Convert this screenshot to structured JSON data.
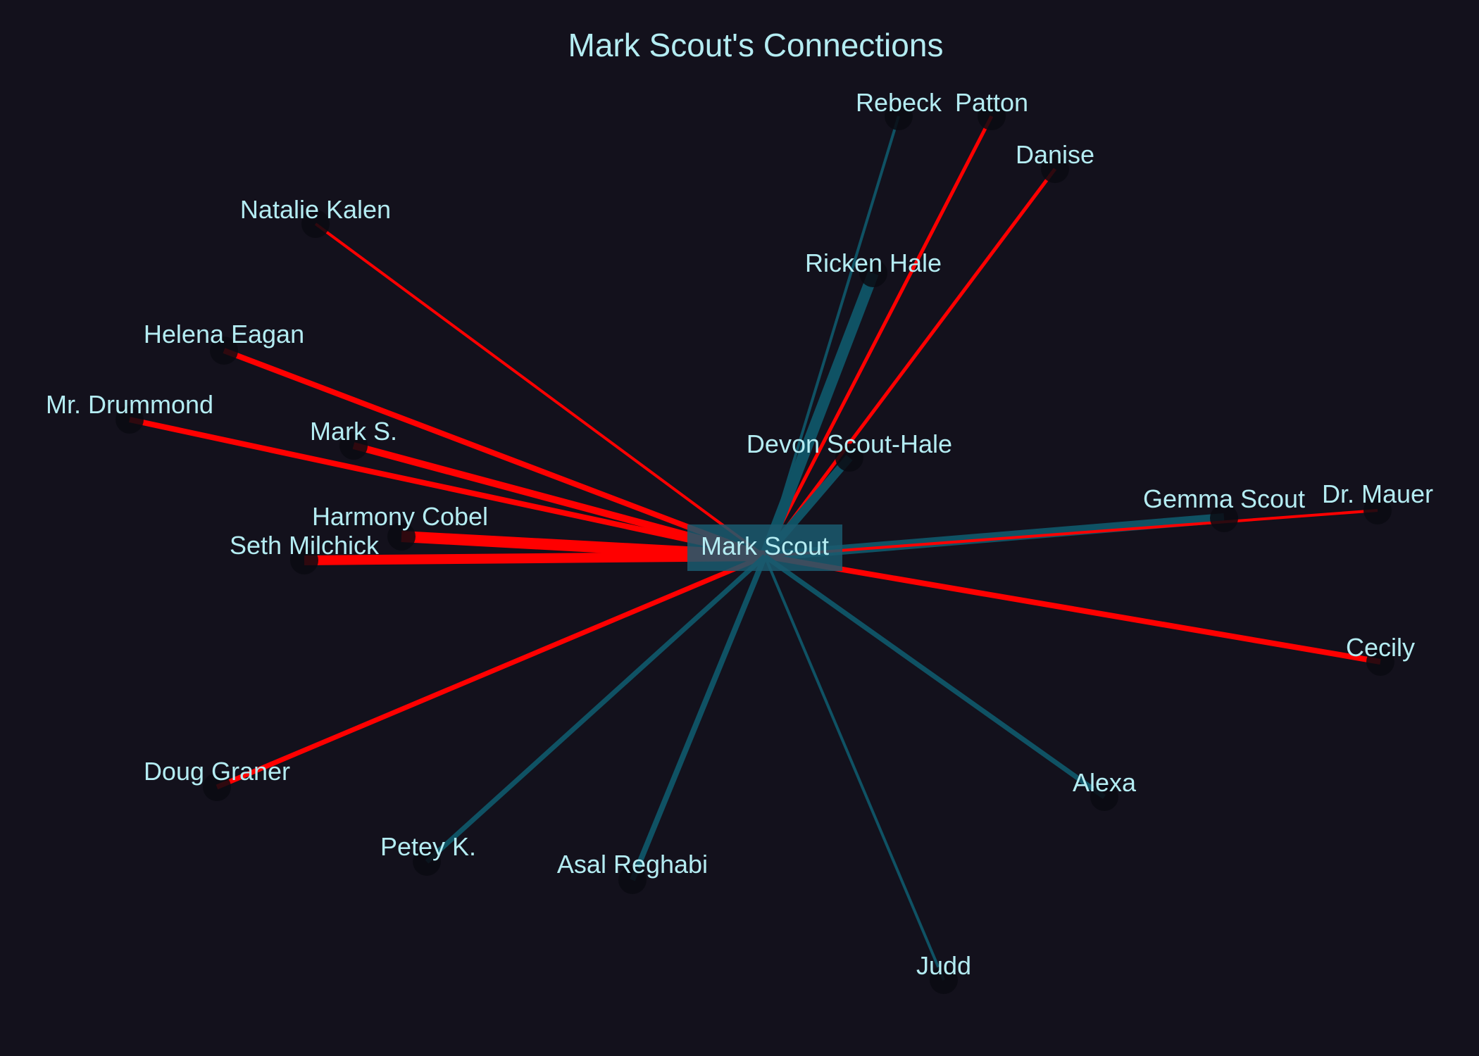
{
  "title": "Mark Scout's Connections",
  "colors": {
    "background": "#13111c",
    "text": "#b4ecf2",
    "positive_edge": "#0f5264",
    "negative_edge": "#ff0000",
    "node_fill": "#0b0a12",
    "center_box": "#1b5a6e"
  },
  "center": {
    "name": "Mark Scout"
  },
  "nodes": [
    {
      "name": "Rebeck",
      "relation": "positive"
    },
    {
      "name": "Patton",
      "relation": "negative"
    },
    {
      "name": "Danise",
      "relation": "negative"
    },
    {
      "name": "Natalie Kalen",
      "relation": "negative"
    },
    {
      "name": "Ricken Hale",
      "relation": "positive"
    },
    {
      "name": "Helena Eagan",
      "relation": "negative"
    },
    {
      "name": "Mr. Drummond",
      "relation": "negative"
    },
    {
      "name": "Mark S.",
      "relation": "negative"
    },
    {
      "name": "Devon Scout-Hale",
      "relation": "positive"
    },
    {
      "name": "Gemma Scout",
      "relation": "positive"
    },
    {
      "name": "Dr. Mauer",
      "relation": "negative"
    },
    {
      "name": "Harmony Cobel",
      "relation": "negative"
    },
    {
      "name": "Seth Milchick",
      "relation": "negative"
    },
    {
      "name": "Cecily",
      "relation": "negative"
    },
    {
      "name": "Doug Graner",
      "relation": "negative"
    },
    {
      "name": "Alexa",
      "relation": "positive"
    },
    {
      "name": "Petey K.",
      "relation": "positive"
    },
    {
      "name": "Asal Reghabi",
      "relation": "positive"
    },
    {
      "name": "Judd",
      "relation": "positive"
    }
  ]
}
